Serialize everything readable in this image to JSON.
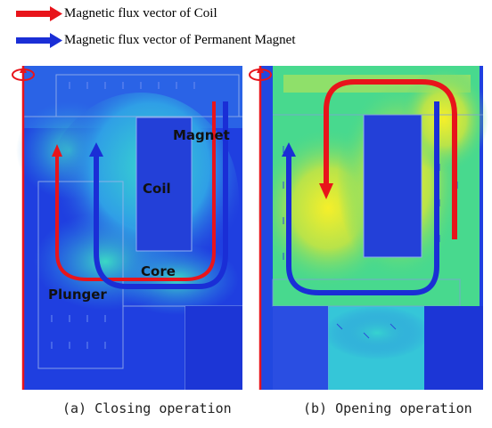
{
  "legend": {
    "coil_label": "Magnetic flux vector of Coil",
    "magnet_label": "Magnetic flux vector of Permanent Magnet",
    "coil_color": "#e8141b",
    "magnet_color": "#1a2ed6"
  },
  "panels": {
    "closing": {
      "labels": {
        "magnet": "Magnet",
        "coil": "Coil",
        "core": "Core",
        "plunger": "Plunger"
      },
      "caption": "(a) Closing operation"
    },
    "opening": {
      "caption": "(b) Opening operation"
    }
  }
}
